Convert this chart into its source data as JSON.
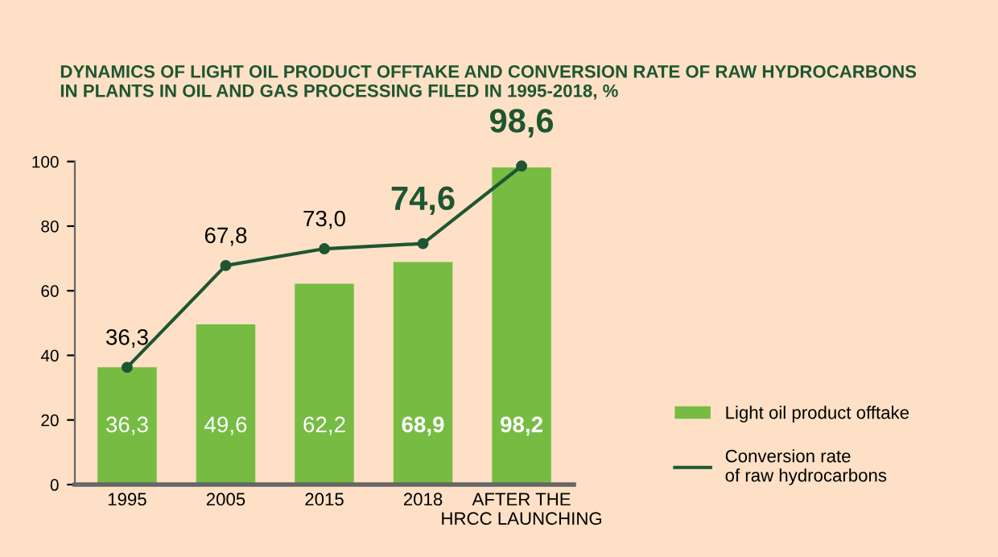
{
  "chart_data": {
    "type": "bar",
    "title": "DYNAMICS OF LIGHT OIL PRODUCT OFFTAKE AND CONVERSION RATE OF RAW HYDROCARBONS\nIN PLANTS IN OIL AND GAS PROCESSING FILED IN 1995-2018, %",
    "categories": [
      "1995",
      "2005",
      "2015",
      "2018",
      "AFTER THE\nHRCC LAUNCHING"
    ],
    "series": [
      {
        "name": "Light oil product offtake",
        "color": "#76bc43",
        "values": [
          36.3,
          49.6,
          62.2,
          68.9,
          98.2
        ],
        "value_labels": [
          "36,3",
          "49,6",
          "62,2",
          "68,9",
          "98,2"
        ]
      },
      {
        "name": "Conversion rate\nof raw hydrocarbons",
        "type": "line",
        "color": "#1e5631",
        "values": [
          36.3,
          67.8,
          73.0,
          74.6,
          98.6
        ],
        "value_labels": [
          "36,3",
          "67,8",
          "73,0",
          "74,6",
          "98,6"
        ]
      }
    ],
    "ylim": [
      0,
      100
    ],
    "yticks": [
      0,
      20,
      40,
      60,
      80,
      100
    ],
    "grid": false,
    "legend": "right",
    "marker": "circle",
    "line_style": "solid"
  }
}
